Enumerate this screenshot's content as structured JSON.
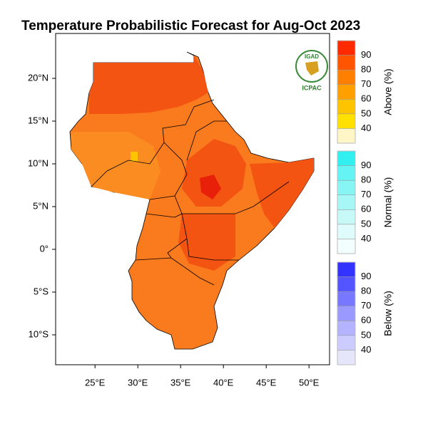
{
  "title": "Temperature Probabilistic Forecast for Aug-Oct 2023",
  "logo": {
    "top": "IGAD",
    "bottom": "ICPAC"
  },
  "map": {
    "xlim": [
      20.4,
      52.4
    ],
    "ylim": [
      -13.5,
      25.25
    ],
    "xticks": [
      {
        "value": 25,
        "label": "25°E"
      },
      {
        "value": 30,
        "label": "30°E"
      },
      {
        "value": 35,
        "label": "35°E"
      },
      {
        "value": 40,
        "label": "40°E"
      },
      {
        "value": 45,
        "label": "45°E"
      },
      {
        "value": 50,
        "label": "50°E"
      }
    ],
    "yticks": [
      {
        "value": 20,
        "label": "20°N"
      },
      {
        "value": 15,
        "label": "15°N"
      },
      {
        "value": 10,
        "label": "10°N"
      },
      {
        "value": 5,
        "label": "5°N"
      },
      {
        "value": 0,
        "label": "0°"
      },
      {
        "value": -5,
        "label": "5°S"
      },
      {
        "value": -10,
        "label": "10°S"
      }
    ]
  },
  "colorbars": [
    {
      "name": "Above (%)",
      "ticks": [
        90,
        80,
        70,
        60,
        50,
        40
      ],
      "colors": [
        "#ff2a00",
        "#ff5500",
        "#ff7f00",
        "#ffa000",
        "#ffc400",
        "#ffe000",
        "#fff6c8"
      ]
    },
    {
      "name": "Normal (%)",
      "ticks": [
        90,
        80,
        70,
        60,
        50,
        40
      ],
      "colors": [
        "#33f0f0",
        "#66f3f3",
        "#88f5f5",
        "#a8f7f7",
        "#c8f9f9",
        "#e0fbfb",
        "#f2fdfd"
      ]
    },
    {
      "name": "Below (%)",
      "ticks": [
        90,
        80,
        70,
        60,
        50,
        40
      ],
      "colors": [
        "#3333ff",
        "#5555ff",
        "#7777ff",
        "#9999ff",
        "#b3b3ff",
        "#ccccff",
        "#e6e6fa"
      ]
    }
  ]
}
